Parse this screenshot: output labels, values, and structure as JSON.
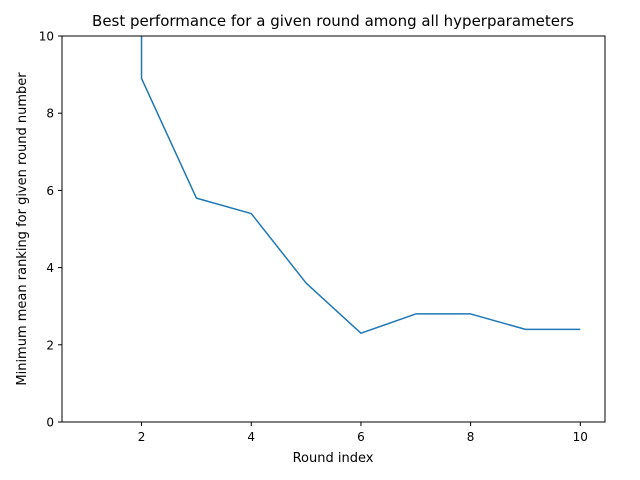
{
  "chart_data": {
    "type": "line",
    "title": "Best performance for a given round among all hyperparameters",
    "xlabel": "Round index",
    "ylabel": "Minimum mean ranking for given round number",
    "xlim": [
      0.55,
      10.45
    ],
    "ylim": [
      0,
      10
    ],
    "xticks": [
      "2",
      "4",
      "6",
      "8",
      "10"
    ],
    "yticks": [
      "0",
      "2",
      "4",
      "6",
      "8",
      "10"
    ],
    "grid": false,
    "series": [
      {
        "color": "#1f77b4",
        "x": [
          2,
          2,
          3,
          4,
          5,
          6,
          7,
          8,
          9,
          10
        ],
        "y": [
          10.5,
          8.9,
          5.8,
          5.4,
          3.6,
          2.3,
          2.8,
          2.8,
          2.4,
          2.4
        ]
      }
    ]
  }
}
